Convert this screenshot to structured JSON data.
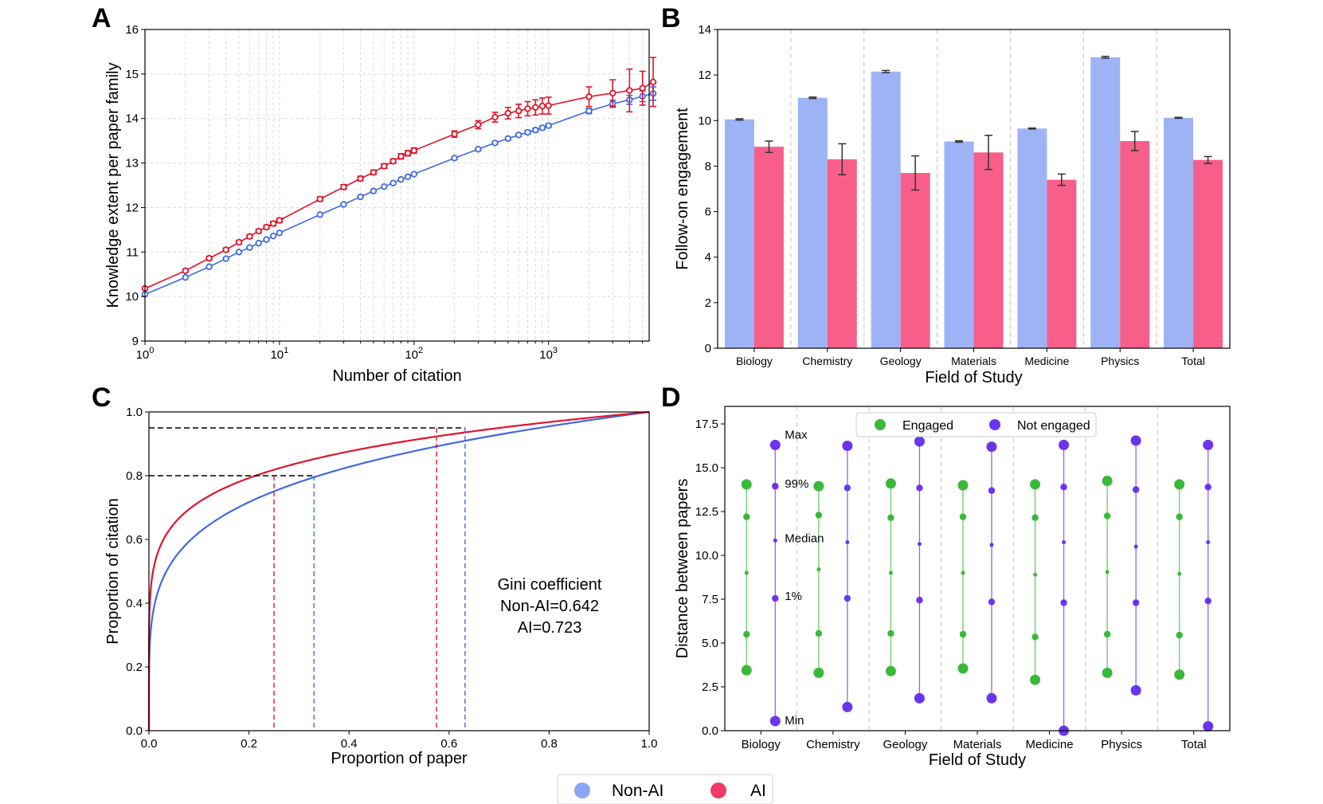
{
  "panels": {
    "A": "A",
    "B": "B",
    "C": "C",
    "D": "D"
  },
  "colors": {
    "non_ai": "#4169e1",
    "ai": "#e0142b",
    "non_ai_bar": "#9db3f5",
    "ai_bar": "#f75f8a",
    "engaged": "#3ab83a",
    "not_engaged": "#6a34f0"
  },
  "legend": {
    "non_ai": "Non-AI",
    "ai": "AI"
  },
  "chart_data": [
    {
      "id": "A",
      "type": "line",
      "xscale": "log",
      "xlabel": "Number of citation",
      "ylabel": "Knowledge extent per paper family",
      "xlim": [
        1,
        5600
      ],
      "ylim": [
        9,
        16
      ],
      "xticks": [
        {
          "value": 1,
          "base": "10",
          "exp": "0"
        },
        {
          "value": 10,
          "base": "10",
          "exp": "1"
        },
        {
          "value": 100,
          "base": "10",
          "exp": "2"
        },
        {
          "value": 1000,
          "base": "10",
          "exp": "3"
        }
      ],
      "yticks": [
        9,
        10,
        11,
        12,
        13,
        14,
        15,
        16
      ],
      "series": [
        {
          "name": "Non-AI",
          "color": "#4169e1",
          "x": [
            1,
            2,
            3,
            4,
            5,
            6,
            7,
            8,
            9,
            10,
            20,
            30,
            40,
            50,
            60,
            70,
            80,
            90,
            100,
            200,
            300,
            400,
            500,
            600,
            700,
            800,
            900,
            1000,
            2000,
            3000,
            4000,
            5000,
            6000
          ],
          "y": [
            10.05,
            10.43,
            10.67,
            10.85,
            11.0,
            11.1,
            11.2,
            11.28,
            11.36,
            11.43,
            11.84,
            12.07,
            12.24,
            12.37,
            12.47,
            12.55,
            12.63,
            12.69,
            12.75,
            13.11,
            13.31,
            13.45,
            13.55,
            13.63,
            13.69,
            13.74,
            13.79,
            13.84,
            14.17,
            14.33,
            14.42,
            14.5,
            14.56
          ],
          "err": [
            0.02,
            0.02,
            0.02,
            0.02,
            0.02,
            0.02,
            0.02,
            0.02,
            0.02,
            0.02,
            0.02,
            0.02,
            0.02,
            0.02,
            0.02,
            0.02,
            0.02,
            0.02,
            0.02,
            0.03,
            0.03,
            0.03,
            0.03,
            0.03,
            0.04,
            0.04,
            0.04,
            0.04,
            0.06,
            0.08,
            0.1,
            0.12,
            0.15
          ]
        },
        {
          "name": "AI",
          "color": "#e0142b",
          "x": [
            1,
            2,
            3,
            4,
            5,
            6,
            7,
            8,
            9,
            10,
            20,
            30,
            40,
            50,
            60,
            70,
            80,
            90,
            100,
            200,
            300,
            400,
            500,
            600,
            700,
            800,
            900,
            1000,
            2000,
            3000,
            4000,
            5000,
            6000
          ],
          "y": [
            10.18,
            10.58,
            10.86,
            11.05,
            11.22,
            11.35,
            11.47,
            11.56,
            11.64,
            11.71,
            12.19,
            12.46,
            12.65,
            12.79,
            12.93,
            13.04,
            13.15,
            13.22,
            13.28,
            13.65,
            13.86,
            14.03,
            14.12,
            14.17,
            14.22,
            14.25,
            14.28,
            14.29,
            14.49,
            14.57,
            14.63,
            14.68,
            14.82
          ],
          "err": [
            0.03,
            0.03,
            0.04,
            0.04,
            0.04,
            0.04,
            0.04,
            0.04,
            0.05,
            0.05,
            0.05,
            0.05,
            0.05,
            0.05,
            0.05,
            0.05,
            0.06,
            0.06,
            0.06,
            0.07,
            0.09,
            0.11,
            0.13,
            0.15,
            0.16,
            0.17,
            0.18,
            0.19,
            0.22,
            0.3,
            0.48,
            0.38,
            0.55
          ]
        }
      ]
    },
    {
      "id": "B",
      "type": "bar",
      "xlabel": "Field of Study",
      "ylabel": "Follow-on engagement",
      "categories": [
        "Biology",
        "Chemistry",
        "Geology",
        "Materials",
        "Medicine",
        "Physics",
        "Total"
      ],
      "ylim": [
        0,
        14
      ],
      "yticks": [
        0,
        2,
        4,
        6,
        8,
        10,
        12,
        14
      ],
      "series": [
        {
          "name": "Non-AI",
          "color": "#9db3f5",
          "values": [
            10.05,
            11.0,
            12.15,
            9.08,
            9.65,
            12.78,
            10.12
          ],
          "err": [
            0.03,
            0.03,
            0.05,
            0.03,
            0.02,
            0.04,
            0.02
          ]
        },
        {
          "name": "AI",
          "color": "#f75f8a",
          "values": [
            8.85,
            8.3,
            7.7,
            8.6,
            7.4,
            9.1,
            8.27
          ],
          "err": [
            0.25,
            0.68,
            0.75,
            0.75,
            0.25,
            0.42,
            0.15
          ]
        }
      ]
    },
    {
      "id": "C",
      "type": "line",
      "xlabel": "Proportion of paper",
      "ylabel": "Proportion of citation",
      "xlim": [
        0,
        1
      ],
      "ylim": [
        0,
        1
      ],
      "xticks": [
        "0.0",
        "0.2",
        "0.4",
        "0.6",
        "0.8",
        "1.0"
      ],
      "yticks": [
        "0.0",
        "0.2",
        "0.4",
        "0.6",
        "0.8",
        "1.0"
      ],
      "series": [
        {
          "name": "Non-AI",
          "color": "#4169e1",
          "curve_exponent": 0.2066
        },
        {
          "name": "AI",
          "color": "#e0142b",
          "curve_exponent": 0.1443
        }
      ],
      "reference_lines": [
        {
          "y": 0.8,
          "x_ai": 0.25,
          "x_non_ai": 0.33
        },
        {
          "y": 0.95,
          "x_ai": 0.575,
          "x_non_ai": 0.632
        }
      ],
      "annotation": [
        "Gini coefficient",
        "Non-AI=0.642",
        "AI=0.723"
      ]
    },
    {
      "id": "D",
      "type": "scatter",
      "xlabel": "Field of Study",
      "ylabel": "Distance between papers",
      "categories": [
        "Biology",
        "Chemistry",
        "Geology",
        "Materials",
        "Medicine",
        "Physics",
        "Total"
      ],
      "ylim": [
        0,
        18.5
      ],
      "yticks": [
        "0.0",
        "2.5",
        "5.0",
        "7.5",
        "10.0",
        "12.5",
        "15.0",
        "17.5"
      ],
      "legend": [
        "Engaged",
        "Not engaged"
      ],
      "percentile_labels": [
        "Max",
        "99%",
        "Median",
        "1%",
        "Min"
      ],
      "series": [
        {
          "name": "Engaged",
          "color": "#3ab83a",
          "values": [
            [
              3.45,
              5.5,
              9.0,
              12.2,
              14.05
            ],
            [
              3.3,
              5.55,
              9.2,
              12.3,
              13.95
            ],
            [
              3.4,
              5.55,
              9.0,
              12.15,
              14.1
            ],
            [
              3.55,
              5.5,
              9.0,
              12.2,
              14.0
            ],
            [
              2.9,
              5.35,
              8.9,
              12.15,
              14.05
            ],
            [
              3.3,
              5.5,
              9.05,
              12.25,
              14.25
            ],
            [
              3.2,
              5.45,
              8.95,
              12.2,
              14.05
            ]
          ]
        },
        {
          "name": "Not engaged",
          "color": "#6a34f0",
          "values": [
            [
              0.55,
              7.55,
              10.85,
              13.95,
              16.3
            ],
            [
              1.35,
              7.55,
              10.75,
              13.85,
              16.25
            ],
            [
              1.85,
              7.45,
              10.65,
              13.85,
              16.5
            ],
            [
              1.85,
              7.35,
              10.6,
              13.7,
              16.2
            ],
            [
              0.0,
              7.3,
              10.75,
              13.9,
              16.3
            ],
            [
              2.3,
              7.3,
              10.5,
              13.75,
              16.55
            ],
            [
              0.25,
              7.4,
              10.75,
              13.9,
              16.3
            ]
          ]
        }
      ]
    }
  ]
}
